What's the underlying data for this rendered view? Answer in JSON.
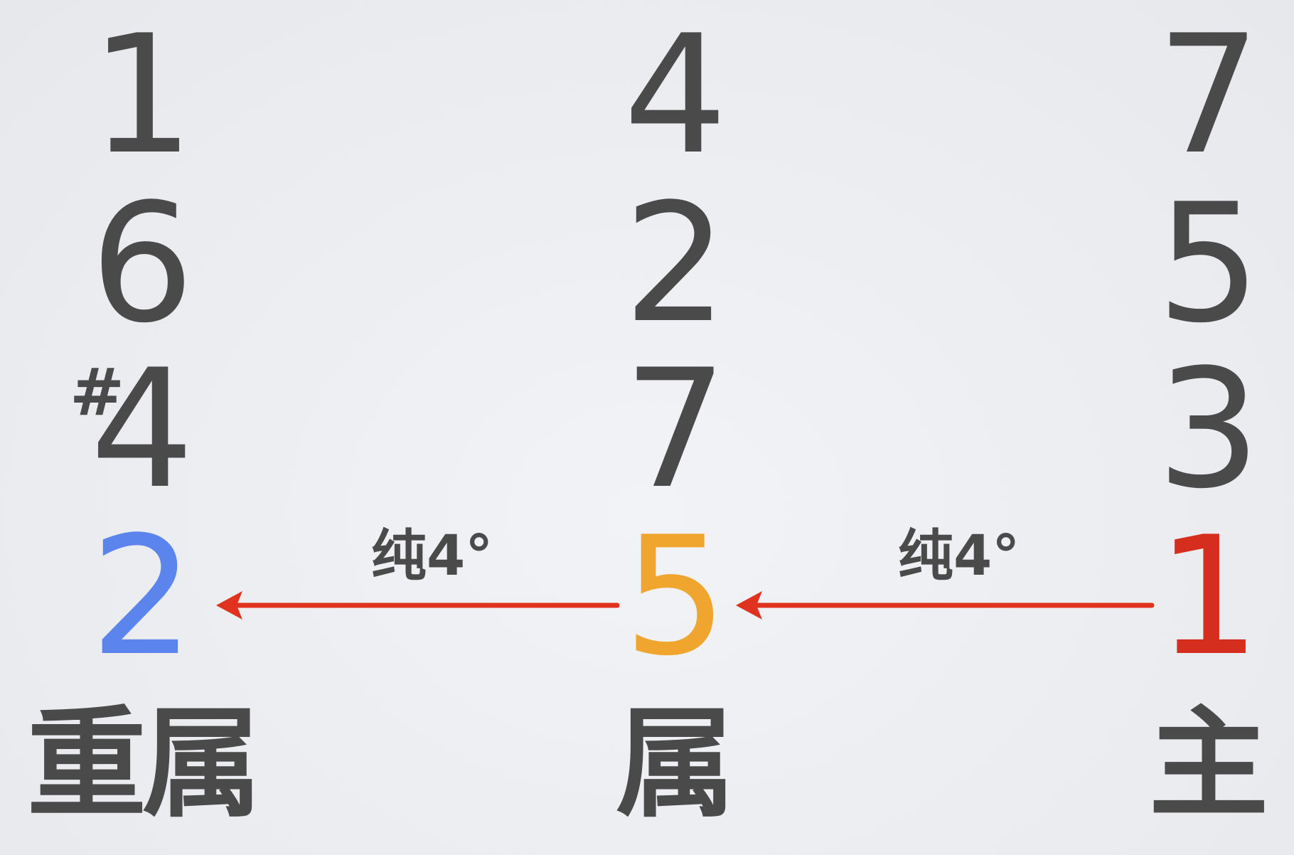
{
  "columns": {
    "left": {
      "notes": [
        "1",
        "6",
        "4",
        "2"
      ],
      "accidental": "#",
      "label": "重属",
      "highlight_color": "#5b85ec"
    },
    "middle": {
      "notes": [
        "4",
        "2",
        "7",
        "5"
      ],
      "label": "属",
      "highlight_color": "#f0a52e"
    },
    "right": {
      "notes": [
        "7",
        "5",
        "3",
        "1"
      ],
      "label": "主",
      "highlight_color": "#d62e1e"
    }
  },
  "intervals": {
    "right_to_middle": "纯4°",
    "middle_to_left": "纯4°"
  },
  "colors": {
    "text": "#4a4a4a",
    "arrow": "#e0331f"
  }
}
